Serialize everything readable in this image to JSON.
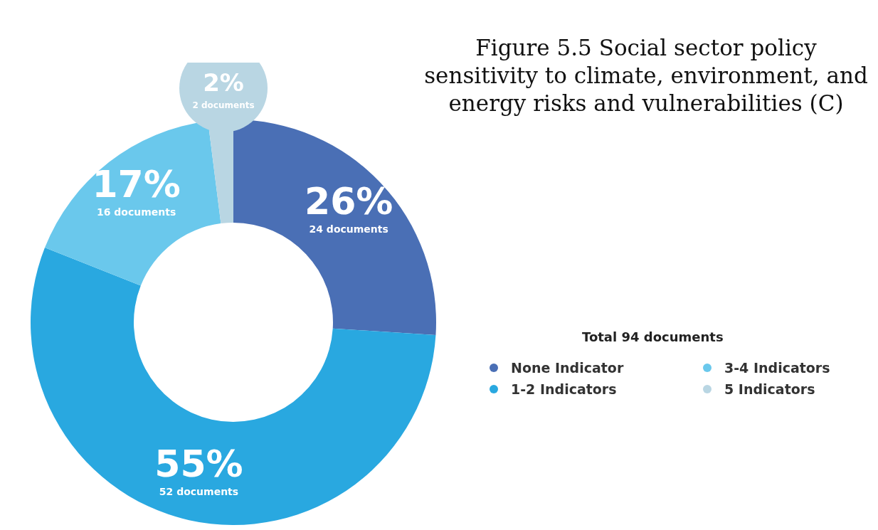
{
  "chart_data": {
    "type": "donut",
    "title": "Figure 5.5 Social sector policy sensitivity to climate, environment, and energy risks and vulnerabilities (C)",
    "legend_title": "Total 94 documents",
    "categories": [
      "None Indicator",
      "1-2 Indicators",
      "3-4 Indicators",
      "5 Indicators"
    ],
    "values": [
      26,
      55,
      17,
      2
    ],
    "colors": [
      "#4a6fb5",
      "#29a8e0",
      "#6ac8ec",
      "#b9d6e3"
    ],
    "value_labels": [
      "26%",
      "55%",
      "17%",
      "2%"
    ],
    "annotations": [
      "24 documents",
      "52 documents",
      "16 documents",
      "2 documents"
    ],
    "legend": "right"
  }
}
